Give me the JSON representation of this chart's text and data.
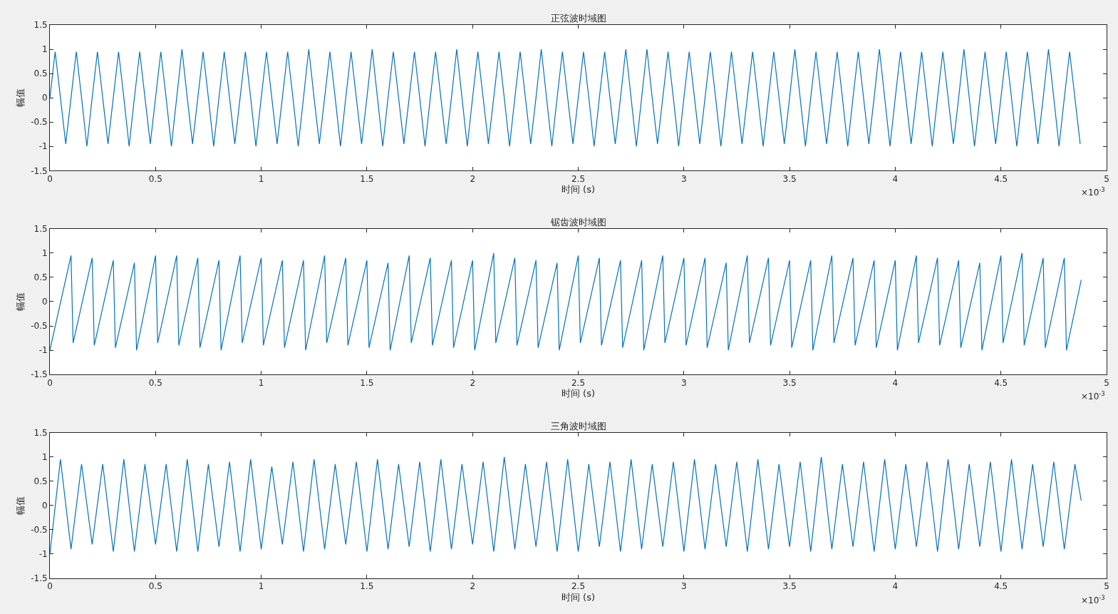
{
  "chart_data": [
    {
      "type": "line",
      "title": "正弦波时域图",
      "xlabel": "时间 (s)",
      "ylabel": "幅值",
      "annotations": [
        "×10$^{-3}$"
      ],
      "xlim": [
        0,
        5
      ],
      "xticks": [
        0,
        0.5,
        1,
        1.5,
        2,
        2.5,
        3,
        3.5,
        4,
        4.5,
        5
      ],
      "ylim": [
        -1.5,
        1.5
      ],
      "yticks": [
        -1.5,
        -1,
        -0.5,
        0,
        0.5,
        1,
        1.5
      ],
      "x": [
        0,
        0.025,
        0.05,
        0.075,
        0.1,
        0.125,
        0.15,
        0.175,
        0.2,
        0.225,
        0.25,
        0.275,
        0.3,
        0.325,
        0.35,
        0.375,
        0.4,
        0.425,
        0.45,
        0.475,
        0.5,
        0.525,
        0.55,
        0.575,
        0.6,
        0.625,
        0.65,
        0.675,
        0.7,
        0.725,
        0.75,
        0.775,
        0.8,
        0.825,
        0.85,
        0.875,
        0.9,
        0.925,
        0.95,
        0.975,
        1,
        1.025,
        1.05,
        1.075,
        1.1,
        1.125,
        1.15,
        1.175,
        1.2,
        1.225,
        1.25,
        1.275,
        1.3,
        1.325,
        1.35,
        1.375,
        1.4,
        1.425,
        1.45,
        1.475,
        1.5,
        1.525,
        1.55,
        1.575,
        1.6,
        1.625,
        1.65,
        1.675,
        1.7,
        1.725,
        1.75,
        1.775,
        1.8,
        1.825,
        1.85,
        1.875,
        1.9,
        1.925,
        1.95,
        1.975,
        2,
        2.025,
        2.05,
        2.075,
        2.1,
        2.125,
        2.15,
        2.175,
        2.2,
        2.225,
        2.25,
        2.275,
        2.3,
        2.325,
        2.35,
        2.375,
        2.4,
        2.425,
        2.45,
        2.475,
        2.5,
        2.525,
        2.55,
        2.575,
        2.6,
        2.625,
        2.65,
        2.675,
        2.7,
        2.725,
        2.75,
        2.775,
        2.8,
        2.825,
        2.85,
        2.875,
        2.9,
        2.925,
        2.95,
        2.975,
        3,
        3.025,
        3.05,
        3.075,
        3.1,
        3.125,
        3.15,
        3.175,
        3.2,
        3.225,
        3.25,
        3.275,
        3.3,
        3.325,
        3.35,
        3.375,
        3.4,
        3.425,
        3.45,
        3.475,
        3.5,
        3.525,
        3.55,
        3.575,
        3.6,
        3.625,
        3.65,
        3.675,
        3.7,
        3.725,
        3.75,
        3.775,
        3.8,
        3.825,
        3.85,
        3.875,
        3.9,
        3.925,
        3.95,
        3.975,
        4,
        4.025,
        4.05,
        4.075,
        4.1,
        4.125,
        4.15,
        4.175,
        4.2,
        4.225,
        4.25,
        4.275,
        4.3,
        4.325,
        4.35,
        4.375,
        4.4,
        4.425,
        4.45,
        4.475,
        4.5,
        4.525,
        4.55,
        4.575,
        4.6,
        4.625,
        4.65,
        4.675,
        4.7,
        4.725,
        4.75,
        4.775,
        4.8,
        4.825,
        4.85,
        4.875
      ],
      "series": [
        {
          "color": "#0072bd",
          "values": [
            0,
            0.95,
            0,
            -0.95,
            0,
            0.95,
            0,
            -1,
            0,
            0.95,
            0,
            -0.95,
            0,
            0.95,
            0,
            -1,
            0,
            0.95,
            0,
            -0.95,
            0,
            0.95,
            0,
            -1,
            0,
            1,
            0,
            -0.95,
            0,
            0.95,
            0,
            -1,
            0,
            0.95,
            0,
            -0.95,
            0,
            0.95,
            0,
            -1,
            0,
            0.95,
            0,
            -0.95,
            0,
            0.95,
            0,
            -1,
            0,
            1,
            0,
            -0.95,
            0,
            0.95,
            0,
            -1,
            0,
            0.95,
            0,
            -0.95,
            0,
            1,
            0,
            -1,
            0,
            0.95,
            0,
            -0.95,
            0,
            0.95,
            0,
            -1,
            0,
            0.95,
            0,
            -0.95,
            0,
            1,
            0,
            -1,
            0,
            0.95,
            0,
            -0.95,
            0,
            0.95,
            0,
            -1,
            0,
            0.95,
            0,
            -0.95,
            0,
            1,
            0,
            -1,
            0,
            0.95,
            0,
            -0.95,
            0,
            0.95,
            0,
            -1,
            0,
            0.95,
            0,
            -0.95,
            0,
            1,
            0,
            -1,
            0,
            1,
            0,
            -0.95,
            0,
            0.95,
            0,
            -1,
            0,
            0.95,
            0,
            -0.95,
            0,
            0.95,
            0,
            -1,
            0,
            0.95,
            0,
            -0.95,
            0,
            0.95,
            0,
            -1,
            0,
            0.95,
            0,
            -0.95,
            0,
            1,
            0,
            -1,
            0,
            0.95,
            0,
            -0.95,
            0,
            0.95,
            0,
            -1,
            0,
            0.95,
            0,
            -0.95,
            0,
            1,
            0,
            -1,
            0,
            0.95,
            0,
            -0.95,
            0,
            0.95,
            0,
            -1,
            0,
            0.95,
            0,
            -0.95,
            0,
            1,
            0,
            -1,
            0,
            0.95,
            0,
            -0.95,
            0,
            0.95,
            0,
            -1,
            0,
            0.95,
            0,
            -0.95,
            0,
            1,
            0,
            -1,
            0,
            0.95,
            0,
            -0.95
          ]
        }
      ]
    },
    {
      "type": "line",
      "title": "锯齿波时域图",
      "xlabel": "时间 (s)",
      "ylabel": "幅值",
      "annotations": [
        "×10$^{-3}$"
      ],
      "xlim": [
        0,
        5
      ],
      "xticks": [
        0,
        0.5,
        1,
        1.5,
        2,
        2.5,
        3,
        3.5,
        4,
        4.5,
        5
      ],
      "ylim": [
        -1.5,
        1.5
      ],
      "yticks": [
        -1.5,
        -1,
        -0.5,
        0,
        0.5,
        1,
        1.5
      ],
      "x": [
        0,
        0.1,
        0.11,
        0.2,
        0.21,
        0.3,
        0.31,
        0.4,
        0.41,
        0.5,
        0.51,
        0.6,
        0.61,
        0.7,
        0.71,
        0.8,
        0.81,
        0.9,
        0.91,
        1,
        1.01,
        1.1,
        1.11,
        1.2,
        1.21,
        1.3,
        1.31,
        1.4,
        1.41,
        1.5,
        1.51,
        1.6,
        1.61,
        1.7,
        1.71,
        1.8,
        1.81,
        1.9,
        1.91,
        2,
        2.01,
        2.1,
        2.11,
        2.2,
        2.21,
        2.3,
        2.31,
        2.4,
        2.41,
        2.5,
        2.51,
        2.6,
        2.61,
        2.7,
        2.71,
        2.8,
        2.81,
        2.9,
        2.91,
        3,
        3.01,
        3.1,
        3.11,
        3.2,
        3.21,
        3.3,
        3.31,
        3.4,
        3.41,
        3.5,
        3.51,
        3.6,
        3.61,
        3.7,
        3.71,
        3.8,
        3.81,
        3.9,
        3.91,
        4,
        4.01,
        4.1,
        4.11,
        4.2,
        4.21,
        4.3,
        4.31,
        4.4,
        4.41,
        4.5,
        4.51,
        4.6,
        4.61,
        4.7,
        4.71,
        4.8,
        4.81,
        4.88
      ],
      "series": [
        {
          "color": "#0072bd",
          "values": [
            -1,
            0.95,
            -0.85,
            0.9,
            -0.9,
            0.85,
            -0.95,
            0.8,
            -1,
            0.95,
            -0.85,
            0.95,
            -0.9,
            0.9,
            -0.95,
            0.85,
            -1,
            0.95,
            -0.85,
            0.9,
            -0.9,
            0.85,
            -0.95,
            0.85,
            -1,
            0.95,
            -0.85,
            0.9,
            -0.9,
            0.85,
            -0.95,
            0.8,
            -1,
            0.95,
            -0.85,
            0.9,
            -0.9,
            0.85,
            -0.95,
            0.85,
            -1,
            1,
            -0.85,
            0.9,
            -0.9,
            0.85,
            -0.95,
            0.8,
            -1,
            0.95,
            -0.85,
            0.9,
            -0.9,
            0.85,
            -0.95,
            0.85,
            -1,
            0.95,
            -0.85,
            0.9,
            -0.9,
            0.9,
            -0.95,
            0.8,
            -1,
            0.95,
            -0.85,
            0.9,
            -0.9,
            0.85,
            -0.95,
            0.85,
            -1,
            0.95,
            -0.85,
            0.9,
            -0.9,
            0.85,
            -0.95,
            0.85,
            -1,
            0.95,
            -0.85,
            0.9,
            -0.9,
            0.85,
            -0.95,
            0.8,
            -1,
            0.95,
            -0.85,
            1,
            -0.9,
            0.9,
            -0.95,
            0.9,
            -1,
            0.45
          ]
        }
      ]
    },
    {
      "type": "line",
      "title": "三角波时域图",
      "xlabel": "时间 (s)",
      "ylabel": "幅值",
      "annotations": [
        "×10$^{-3}$"
      ],
      "xlim": [
        0,
        5
      ],
      "xticks": [
        0,
        0.5,
        1,
        1.5,
        2,
        2.5,
        3,
        3.5,
        4,
        4.5,
        5
      ],
      "ylim": [
        -1.5,
        1.5
      ],
      "yticks": [
        -1.5,
        -1,
        -0.5,
        0,
        0.5,
        1,
        1.5
      ],
      "x": [
        0,
        0.05,
        0.1,
        0.15,
        0.2,
        0.25,
        0.3,
        0.35,
        0.4,
        0.45,
        0.5,
        0.55,
        0.6,
        0.65,
        0.7,
        0.75,
        0.8,
        0.85,
        0.9,
        0.95,
        1,
        1.05,
        1.1,
        1.15,
        1.2,
        1.25,
        1.3,
        1.35,
        1.4,
        1.45,
        1.5,
        1.55,
        1.6,
        1.65,
        1.7,
        1.75,
        1.8,
        1.85,
        1.9,
        1.95,
        2,
        2.05,
        2.1,
        2.15,
        2.2,
        2.25,
        2.3,
        2.35,
        2.4,
        2.45,
        2.5,
        2.55,
        2.6,
        2.65,
        2.7,
        2.75,
        2.8,
        2.85,
        2.9,
        2.95,
        3,
        3.05,
        3.1,
        3.15,
        3.2,
        3.25,
        3.3,
        3.35,
        3.4,
        3.45,
        3.5,
        3.55,
        3.6,
        3.65,
        3.7,
        3.75,
        3.8,
        3.85,
        3.9,
        3.95,
        4,
        4.05,
        4.1,
        4.15,
        4.2,
        4.25,
        4.3,
        4.35,
        4.4,
        4.45,
        4.5,
        4.55,
        4.6,
        4.65,
        4.7,
        4.75,
        4.8,
        4.85,
        4.88
      ],
      "series": [
        {
          "color": "#0072bd",
          "values": [
            -1,
            0.95,
            -0.9,
            0.85,
            -0.8,
            0.85,
            -0.95,
            0.95,
            -0.95,
            0.85,
            -0.8,
            0.85,
            -0.95,
            0.95,
            -0.95,
            0.85,
            -0.85,
            0.9,
            -0.95,
            0.95,
            -0.9,
            0.8,
            -0.8,
            0.9,
            -0.95,
            0.95,
            -0.9,
            0.85,
            -0.8,
            0.9,
            -0.95,
            0.95,
            -0.9,
            0.85,
            -0.85,
            0.9,
            -0.95,
            0.95,
            -0.9,
            0.85,
            -0.8,
            0.9,
            -0.95,
            1,
            -0.9,
            0.85,
            -0.85,
            0.9,
            -0.95,
            0.95,
            -0.95,
            0.85,
            -0.85,
            0.9,
            -0.95,
            0.95,
            -0.9,
            0.85,
            -0.85,
            0.9,
            -0.95,
            0.95,
            -0.9,
            0.85,
            -0.85,
            0.9,
            -0.95,
            0.95,
            -0.9,
            0.85,
            -0.85,
            0.9,
            -0.95,
            1,
            -0.9,
            0.85,
            -0.85,
            0.9,
            -0.95,
            0.95,
            -0.9,
            0.85,
            -0.85,
            0.9,
            -0.95,
            0.95,
            -0.9,
            0.85,
            -0.85,
            0.9,
            -0.95,
            0.95,
            -0.9,
            0.85,
            -0.85,
            0.9,
            -0.9,
            0.85,
            0.1
          ]
        }
      ]
    }
  ]
}
